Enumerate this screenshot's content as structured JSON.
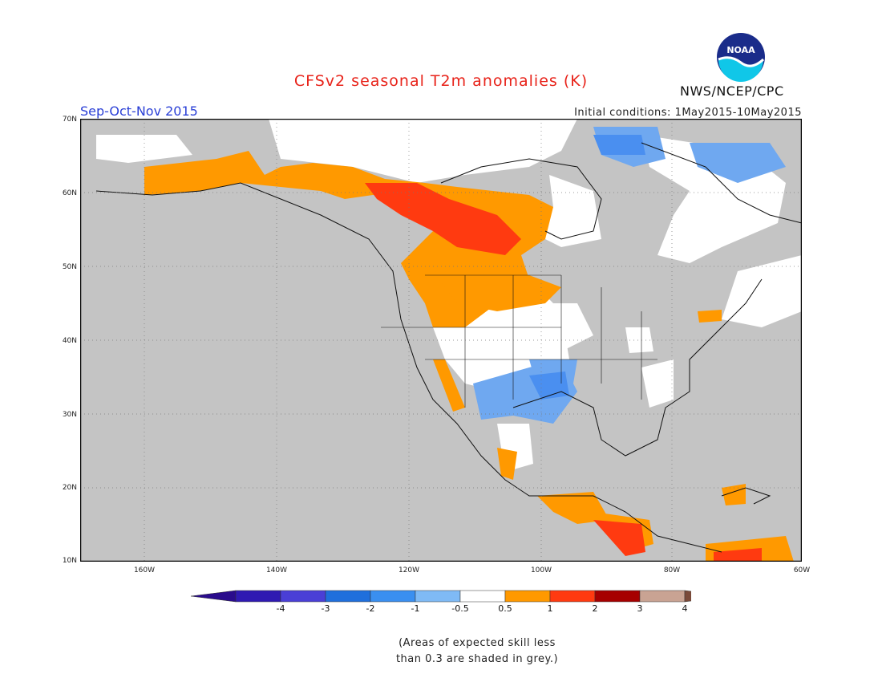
{
  "title": "CFSv2 seasonal T2m anomalies (K)",
  "season": "Sep-Oct-Nov 2015",
  "initial_conditions": "Initial conditions: 1May2015-10May2015",
  "agency": "NWS/NCEP/CPC",
  "logo_text": "NOAA",
  "map": {
    "y_ticks": [
      "70N",
      "60N",
      "50N",
      "40N",
      "30N",
      "20N",
      "10N"
    ],
    "x_ticks": [
      "160W",
      "140W",
      "120W",
      "100W",
      "80W",
      "60W"
    ],
    "colors": {
      "grey": "#c4c4c4",
      "ocean_land_low_skill": "#c4c4c4",
      "cool_light": "#6fa8f0",
      "cool": "#4a8ff0",
      "warm_orange": "#ff9900",
      "warm_red": "#ff3a10",
      "hot_dark": "#a60000"
    }
  },
  "colorbar": {
    "labels": [
      "-4",
      "-3",
      "-2",
      "-1",
      "-0.5",
      "0.5",
      "1",
      "2",
      "3",
      "4"
    ],
    "colors": [
      "#2f1ab2",
      "#4a3fd6",
      "#1f6fdc",
      "#3a8ff0",
      "#7fbaf5",
      "#ffffff",
      "#ff9900",
      "#ff3a10",
      "#a60000",
      "#c9a393"
    ],
    "end_left_color": "#2a0c8c",
    "end_right_color": "#7a4a3a"
  },
  "footnote": {
    "line1": "(Areas of expected skill less",
    "line2": "than 0.3 are shaded in grey.)"
  }
}
